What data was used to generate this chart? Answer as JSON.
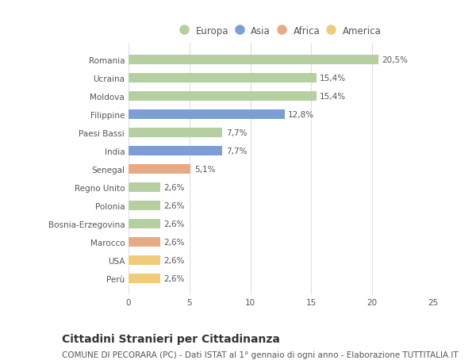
{
  "categories": [
    "Romania",
    "Ucraina",
    "Moldova",
    "Filippine",
    "Paesi Bassi",
    "India",
    "Senegal",
    "Regno Unito",
    "Polonia",
    "Bosnia-Erzegovina",
    "Marocco",
    "USA",
    "Perù"
  ],
  "values": [
    20.5,
    15.4,
    15.4,
    12.8,
    7.7,
    7.7,
    5.1,
    2.6,
    2.6,
    2.6,
    2.6,
    2.6,
    2.6
  ],
  "labels": [
    "20,5%",
    "15,4%",
    "15,4%",
    "12,8%",
    "7,7%",
    "7,7%",
    "5,1%",
    "2,6%",
    "2,6%",
    "2,6%",
    "2,6%",
    "2,6%",
    "2,6%"
  ],
  "continents": [
    "Europa",
    "Europa",
    "Europa",
    "Asia",
    "Europa",
    "Asia",
    "Africa",
    "Europa",
    "Europa",
    "Europa",
    "Africa",
    "America",
    "America"
  ],
  "continent_colors": {
    "Europa": "#b5cfa0",
    "Asia": "#7b9fd4",
    "Africa": "#e8aa82",
    "America": "#f0cc7a"
  },
  "legend_order": [
    "Europa",
    "Asia",
    "Africa",
    "America"
  ],
  "title": "Cittadini Stranieri per Cittadinanza",
  "subtitle": "COMUNE DI PECORARA (PC) - Dati ISTAT al 1° gennaio di ogni anno - Elaborazione TUTTITALIA.IT",
  "xlim": [
    0,
    25
  ],
  "xticks": [
    0,
    5,
    10,
    15,
    20,
    25
  ],
  "background_color": "#ffffff",
  "bar_height": 0.55,
  "grid_color": "#e0e0e0",
  "text_color": "#555555",
  "title_fontsize": 10,
  "subtitle_fontsize": 7.5,
  "label_fontsize": 7.5,
  "tick_fontsize": 7.5,
  "legend_fontsize": 8.5
}
